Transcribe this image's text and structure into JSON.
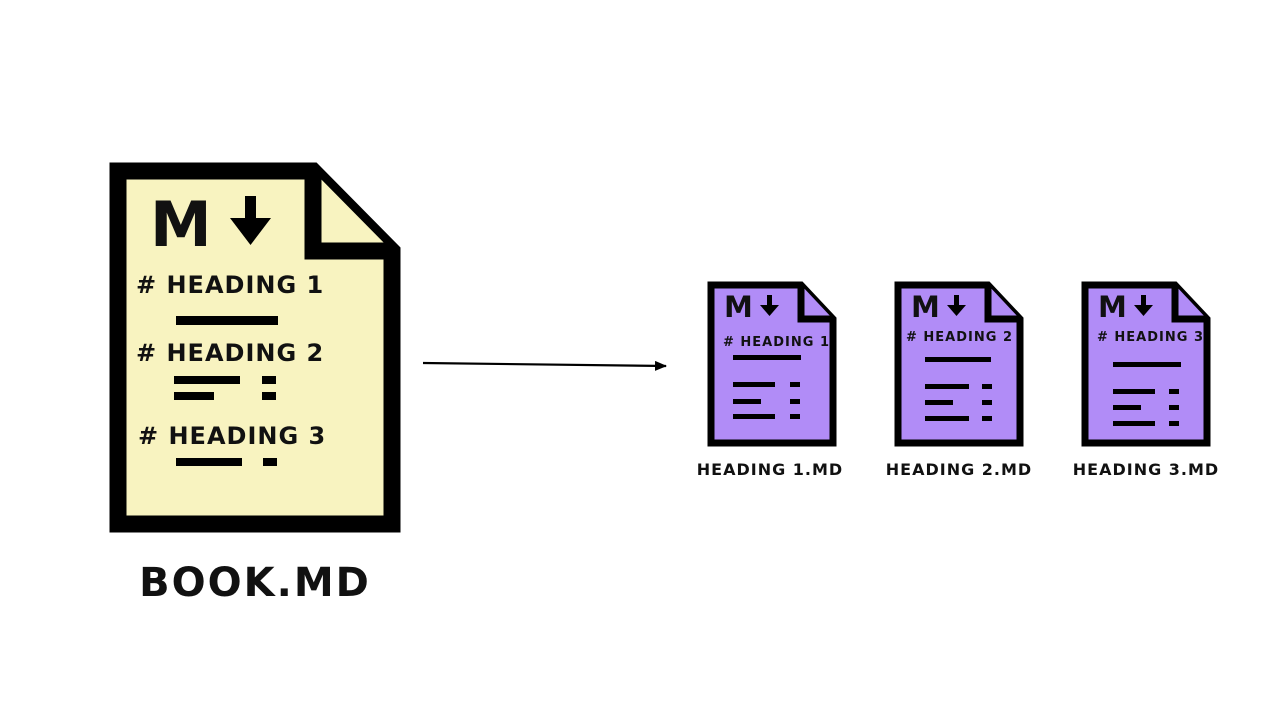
{
  "source": {
    "filename": "BOOK.MD",
    "headings": [
      "# HEADING 1",
      "# HEADING 2",
      "# HEADING 3"
    ],
    "logo_text": "M",
    "logo_icon": "arrow-down-icon",
    "fill_color": "#f8f3c0"
  },
  "outputs": [
    {
      "heading": "# HEADING 1",
      "filename": "HEADING 1.MD"
    },
    {
      "heading": "# HEADING 2",
      "filename": "HEADING 2.MD"
    },
    {
      "heading": "# HEADING 3",
      "filename": "HEADING 3.MD"
    }
  ],
  "output_fill_color": "#b18cf7",
  "outline_color": "#000000",
  "connector_icon": "arrow-right-icon"
}
